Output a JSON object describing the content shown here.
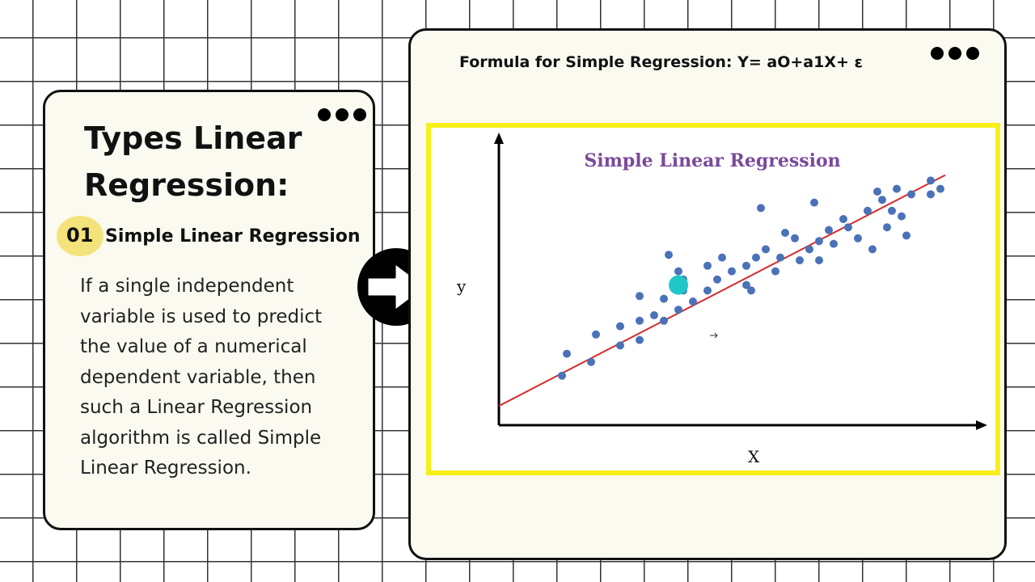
{
  "left_card": {
    "heading": "Types Linear Regression:",
    "number": "01",
    "subtitle": "Simple Linear Regression",
    "body": "If a single independent variable is used to predict the value of a numerical dependent variable, then such a Linear Regression algorithm is called Simple Linear Regression."
  },
  "right_card": {
    "formula": "Formula for Simple Regression:  Y= aO+a1X+ ε"
  },
  "icons": {
    "menu": "more-dots-icon",
    "arrow": "right-arrow-icon"
  },
  "colors": {
    "frame": "#f7ef1a",
    "title": "#7a4a9b",
    "points": "#4a72b8",
    "line": "#d62b2b",
    "highlight": "#1fc7c7",
    "badge": "#f3e37a"
  },
  "chart_data": {
    "type": "scatter",
    "title": "Simple Linear Regression",
    "xlabel": "X",
    "ylabel": "y",
    "grid": false,
    "xlim": [
      0,
      100
    ],
    "ylim": [
      0,
      100
    ],
    "points": [
      [
        13,
        18
      ],
      [
        14,
        26
      ],
      [
        19,
        23
      ],
      [
        20,
        33
      ],
      [
        25,
        29
      ],
      [
        25,
        36
      ],
      [
        29,
        31
      ],
      [
        29,
        38
      ],
      [
        29,
        47
      ],
      [
        32,
        40
      ],
      [
        34,
        38
      ],
      [
        34,
        46
      ],
      [
        35,
        62
      ],
      [
        37,
        42
      ],
      [
        37,
        56
      ],
      [
        38,
        49
      ],
      [
        38,
        53
      ],
      [
        40,
        45
      ],
      [
        43,
        49
      ],
      [
        43,
        58
      ],
      [
        45,
        53
      ],
      [
        46,
        61
      ],
      [
        48,
        56
      ],
      [
        51,
        58
      ],
      [
        51,
        51
      ],
      [
        53,
        61
      ],
      [
        52,
        49
      ],
      [
        55,
        64
      ],
      [
        54,
        79
      ],
      [
        57,
        56
      ],
      [
        58,
        61
      ],
      [
        59,
        70
      ],
      [
        61,
        68
      ],
      [
        62,
        60
      ],
      [
        64,
        64
      ],
      [
        65,
        81
      ],
      [
        66,
        67
      ],
      [
        66,
        60
      ],
      [
        68,
        71
      ],
      [
        69,
        66
      ],
      [
        71,
        75
      ],
      [
        72,
        72
      ],
      [
        74,
        68
      ],
      [
        76,
        78
      ],
      [
        77,
        64
      ],
      [
        78,
        85
      ],
      [
        79,
        82
      ],
      [
        80,
        72
      ],
      [
        81,
        78
      ],
      [
        82,
        86
      ],
      [
        83,
        76
      ],
      [
        84,
        69
      ],
      [
        85,
        84
      ],
      [
        89,
        84
      ],
      [
        89,
        89
      ],
      [
        91,
        86
      ]
    ],
    "highlight_point": [
      37,
      51
    ],
    "regression_line": {
      "x": [
        0,
        92
      ],
      "y": [
        7,
        91
      ]
    }
  }
}
